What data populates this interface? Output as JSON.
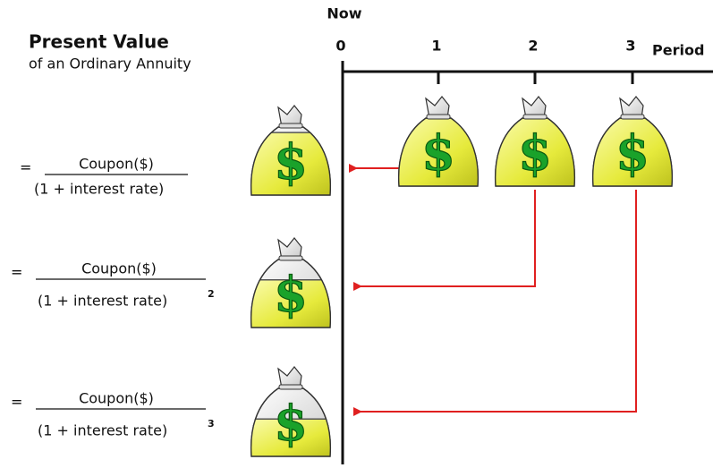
{
  "header": {
    "title": "Present Value",
    "subtitle": "of an Ordinary Annuity"
  },
  "timeline": {
    "now_label": "Now",
    "axis_label": "Period",
    "periods": [
      "0",
      "1",
      "2",
      "3"
    ]
  },
  "bag_symbol": "$",
  "formulas": [
    {
      "equals": "=",
      "numerator": "Coupon($)",
      "denominator": "(1 + interest rate)"
    },
    {
      "equals": "=",
      "numerator": "Coupon($)",
      "denominator": "(1 + interest rate)",
      "exponent": "2"
    },
    {
      "equals": "=",
      "numerator": "Coupon($)",
      "denominator": "(1 + interest rate)",
      "exponent": "3"
    }
  ]
}
